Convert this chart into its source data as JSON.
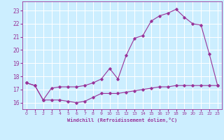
{
  "xlabel": "Windchill (Refroidissement éolien,°C)",
  "bg_color": "#cceeff",
  "grid_color": "#ffffff",
  "line_color": "#993399",
  "xlim": [
    -0.5,
    23.5
  ],
  "ylim": [
    15.5,
    23.7
  ],
  "xticks": [
    0,
    1,
    2,
    3,
    4,
    5,
    6,
    7,
    8,
    9,
    10,
    11,
    12,
    13,
    14,
    15,
    16,
    17,
    18,
    19,
    20,
    21,
    22,
    23
  ],
  "yticks": [
    16,
    17,
    18,
    19,
    20,
    21,
    22,
    23
  ],
  "line1_x": [
    0,
    1,
    2,
    3,
    4,
    5,
    6,
    7,
    8,
    9,
    10,
    11,
    12,
    13,
    14,
    15,
    16,
    17,
    18,
    19,
    20,
    21,
    22,
    23
  ],
  "line1_y": [
    17.5,
    17.3,
    16.2,
    16.2,
    16.2,
    16.1,
    16.0,
    16.1,
    16.4,
    16.7,
    16.7,
    16.7,
    16.8,
    16.9,
    17.0,
    17.1,
    17.2,
    17.2,
    17.3,
    17.3,
    17.3,
    17.3,
    17.3,
    17.3
  ],
  "line2_x": [
    0,
    1,
    2,
    3,
    4,
    5,
    6,
    7,
    8,
    9,
    10,
    11,
    12,
    13,
    14,
    15,
    16,
    17,
    18,
    19,
    20,
    21,
    22,
    23
  ],
  "line2_y": [
    17.5,
    17.3,
    16.2,
    17.1,
    17.2,
    17.2,
    17.2,
    17.3,
    17.5,
    17.8,
    18.6,
    17.8,
    19.6,
    20.9,
    21.1,
    22.2,
    22.6,
    22.8,
    23.1,
    22.5,
    22.0,
    21.9,
    19.7,
    17.3
  ]
}
